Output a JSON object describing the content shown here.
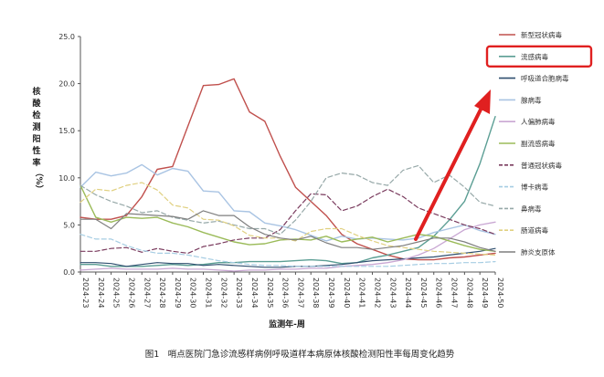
{
  "chart_data": {
    "type": "line",
    "xlabel": "监测年-周",
    "ylabel_chars": [
      "核",
      "酸",
      "检",
      "测",
      "阳",
      "性",
      "率",
      "（%）"
    ],
    "ylim": [
      0,
      25
    ],
    "yticks": [
      "0.0",
      "5.0",
      "10.0",
      "15.0",
      "20.0",
      "25.0"
    ],
    "grid": false,
    "legend_position": "right",
    "caption": "图1　哨点医院门急诊流感样病例呼吸道样本病原体核酸检测阳性率每周变化趋势",
    "highlighted_series": "流感病毒",
    "categories": [
      "2024-23",
      "2024-24",
      "2024-25",
      "2024-26",
      "2024-27",
      "2024-28",
      "2024-29",
      "2024-30",
      "2024-31",
      "2024-32",
      "2024-33",
      "2024-34",
      "2024-35",
      "2024-36",
      "2024-37",
      "2024-38",
      "2024-39",
      "2024-40",
      "2024-41",
      "2024-42",
      "2024-43",
      "2024-44",
      "2024-45",
      "2024-46",
      "2024-47",
      "2024-48",
      "2024-49",
      "2024-50"
    ],
    "tick_labels": [
      "2024-23",
      "2024-24",
      "2024-25",
      "2024-26",
      "2024-27",
      "2024-28",
      "2024-29",
      "2024-30",
      "2024-31",
      "2024-32",
      "2024-33",
      "2024-34",
      "2024-35",
      "2024-36",
      "2024-37",
      "2024-38",
      "2024-39",
      "2024-40",
      "2024-41",
      "2024-42",
      "2024-43",
      "2024-44",
      "2024-45",
      "2024-46",
      "2024-47",
      "2024-48",
      "2024-49",
      "2024-50"
    ],
    "series": [
      {
        "name": "新型冠状病毒",
        "color": "#c0504d",
        "dash": "",
        "width": 1.4,
        "values": [
          5.8,
          5.6,
          5.6,
          6.0,
          8.0,
          10.9,
          11.2,
          15.5,
          19.8,
          19.9,
          20.5,
          17.0,
          16.0,
          12.3,
          9.0,
          7.5,
          6.0,
          4.0,
          3.0,
          2.4,
          1.8,
          1.4,
          1.3,
          1.3,
          1.5,
          1.6,
          1.8,
          2.0
        ]
      },
      {
        "name": "流感病毒",
        "color": "#5b9e94",
        "dash": "",
        "width": 1.4,
        "values": [
          0.8,
          0.8,
          0.6,
          0.6,
          0.6,
          0.7,
          0.8,
          0.7,
          0.8,
          1.0,
          1.0,
          1.1,
          1.1,
          1.1,
          1.2,
          1.3,
          1.2,
          0.9,
          1.0,
          1.5,
          1.8,
          2.2,
          2.6,
          3.8,
          5.5,
          7.5,
          11.5,
          16.5
        ]
      },
      {
        "name": "呼吸道合胞病毒",
        "color": "#2f4f6f",
        "dash": "",
        "width": 1.2,
        "values": [
          1.0,
          1.0,
          0.9,
          0.6,
          0.8,
          1.0,
          0.9,
          0.9,
          0.7,
          0.8,
          0.7,
          0.6,
          0.5,
          0.5,
          0.6,
          0.6,
          0.7,
          0.8,
          1.0,
          1.2,
          1.3,
          1.4,
          1.5,
          1.6,
          1.8,
          2.0,
          2.2,
          2.5
        ]
      },
      {
        "name": "腺病毒",
        "color": "#a9c4e3",
        "dash": "",
        "width": 1.4,
        "values": [
          9.0,
          10.6,
          10.2,
          10.5,
          11.4,
          10.3,
          11.0,
          10.7,
          8.6,
          8.5,
          6.5,
          6.4,
          5.2,
          4.9,
          4.5,
          3.9,
          3.3,
          3.8,
          3.5,
          3.6,
          3.5,
          3.4,
          3.6,
          4.2,
          4.6,
          5.0,
          4.4,
          4.0
        ]
      },
      {
        "name": "人偏肺病毒",
        "color": "#c9a7d3",
        "dash": "",
        "width": 1.3,
        "values": [
          0.2,
          0.3,
          0.4,
          0.3,
          0.3,
          0.3,
          0.4,
          0.3,
          0.3,
          0.2,
          0.1,
          0.2,
          0.2,
          0.3,
          0.3,
          0.4,
          0.4,
          0.6,
          0.7,
          0.8,
          1.0,
          1.3,
          1.8,
          2.5,
          3.5,
          4.5,
          5.0,
          5.3
        ]
      },
      {
        "name": "副流感病毒",
        "color": "#9bbb59",
        "dash": "",
        "width": 1.4,
        "values": [
          9.2,
          5.8,
          5.3,
          5.8,
          5.7,
          5.8,
          5.2,
          4.8,
          4.2,
          3.7,
          3.2,
          2.9,
          3.0,
          3.4,
          3.5,
          3.4,
          3.8,
          3.2,
          3.5,
          3.7,
          3.2,
          3.6,
          4.0,
          3.8,
          3.3,
          2.8,
          2.4,
          2.2
        ]
      },
      {
        "name": "普通冠状病毒",
        "color": "#7a3b5e",
        "dash": "5,3",
        "width": 1.2,
        "values": [
          2.2,
          2.2,
          2.5,
          2.6,
          2.1,
          2.5,
          2.2,
          2.0,
          2.7,
          3.0,
          3.4,
          3.6,
          3.6,
          4.5,
          6.5,
          8.3,
          8.2,
          6.5,
          7.0,
          8.0,
          8.8,
          8.0,
          6.8,
          6.2,
          5.6,
          5.0,
          4.6,
          4.0
        ]
      },
      {
        "name": "博卡病毒",
        "color": "#a6cde3",
        "dash": "5,3",
        "width": 1.2,
        "values": [
          4.0,
          3.5,
          3.5,
          2.8,
          2.3,
          2.0,
          2.0,
          1.8,
          1.5,
          1.2,
          1.0,
          0.8,
          0.7,
          0.7,
          0.6,
          0.6,
          0.6,
          0.6,
          0.6,
          0.6,
          0.6,
          0.7,
          0.8,
          0.9,
          0.9,
          1.0,
          1.0,
          1.1
        ]
      },
      {
        "name": "鼻病毒",
        "color": "#96a8a8",
        "dash": "5,3",
        "width": 1.2,
        "values": [
          9.2,
          8.2,
          7.5,
          7.0,
          6.3,
          6.5,
          5.8,
          5.5,
          5.2,
          5.4,
          5.0,
          4.6,
          4.6,
          4.0,
          5.5,
          7.5,
          10.0,
          10.5,
          10.3,
          9.5,
          9.2,
          10.8,
          11.3,
          9.5,
          10.3,
          9.0,
          7.4,
          7.0
        ]
      },
      {
        "name": "肠道病毒",
        "color": "#e0d080",
        "dash": "5,3",
        "width": 1.2,
        "values": [
          7.4,
          8.8,
          8.6,
          9.2,
          9.5,
          8.7,
          7.1,
          6.8,
          5.6,
          5.5,
          4.9,
          3.9,
          3.6,
          3.6,
          3.3,
          4.3,
          4.6,
          4.6,
          3.9,
          3.3,
          2.8,
          2.6,
          2.4,
          2.2,
          2.1,
          2.0,
          1.9,
          1.8
        ]
      },
      {
        "name": "肺炎支原体",
        "color": "#7f7f7f",
        "dash": "",
        "width": 1.2,
        "values": [
          5.6,
          5.6,
          4.6,
          6.2,
          6.1,
          6.0,
          5.9,
          5.6,
          6.5,
          6.0,
          6.0,
          4.8,
          4.0,
          3.6,
          3.4,
          3.8,
          3.1,
          2.6,
          2.6,
          2.4,
          2.6,
          2.8,
          3.2,
          3.6,
          3.6,
          3.2,
          2.6,
          2.2
        ]
      }
    ]
  }
}
